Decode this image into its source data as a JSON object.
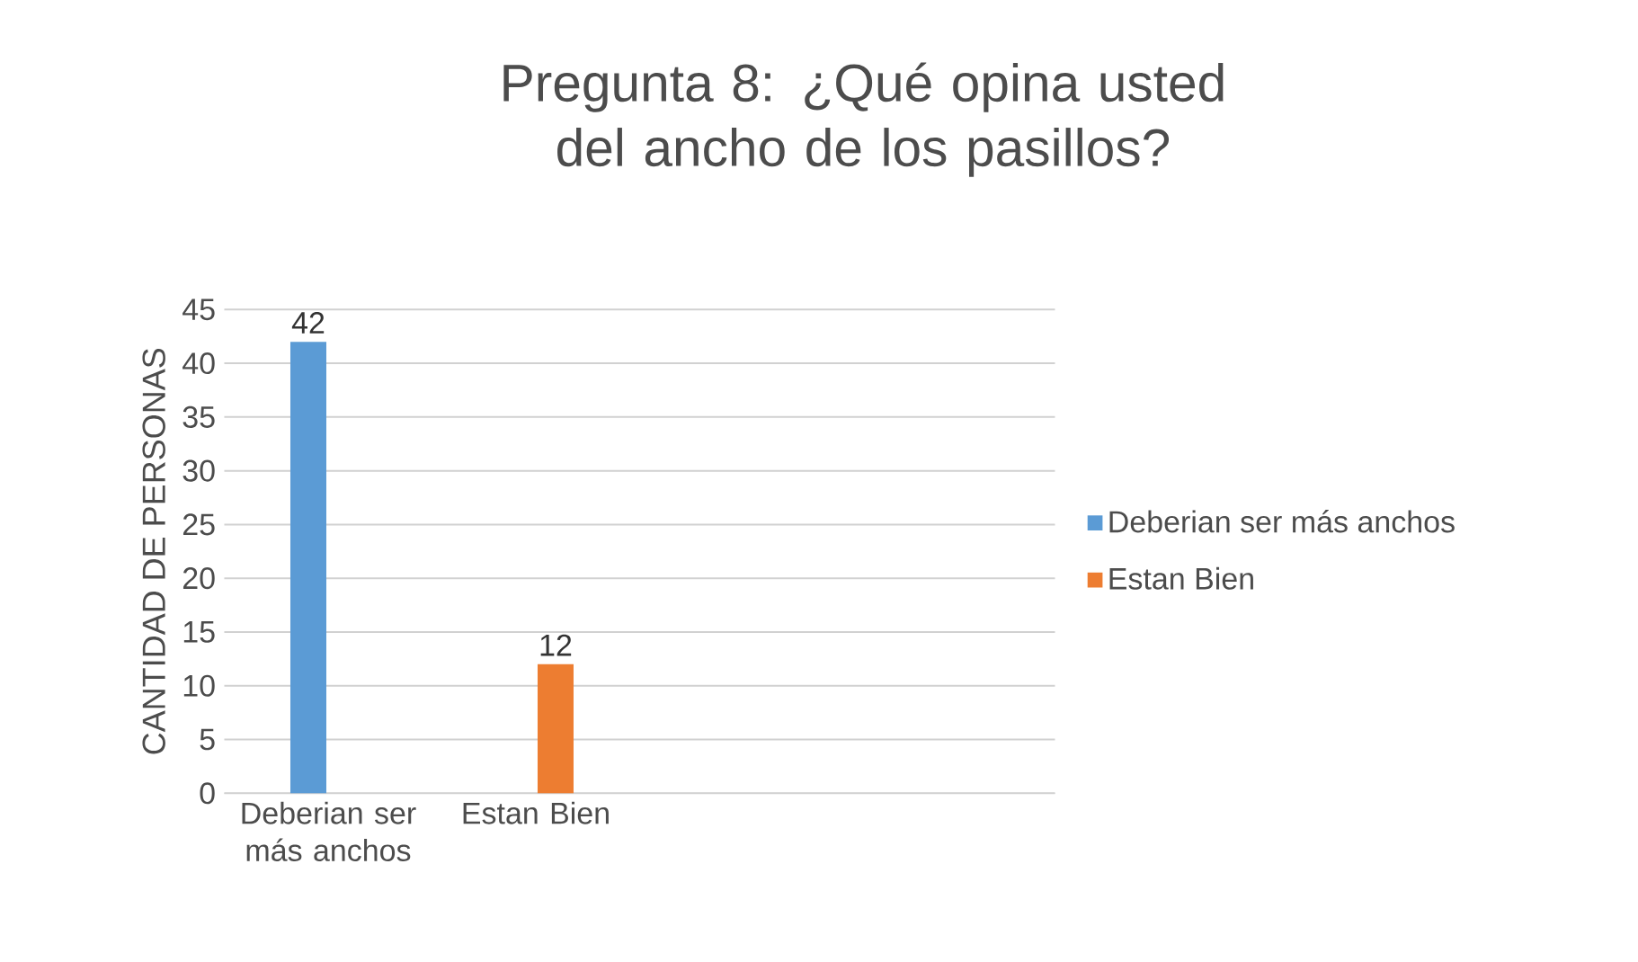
{
  "chart_data": {
    "type": "bar",
    "title": "Pregunta 8: ¿Qué opina usted del ancho de los pasillos?",
    "ylabel": "CANTIDAD DE PERSONAS",
    "categories": [
      "Deberian ser más anchos",
      "Estan Bien",
      null,
      null
    ],
    "series": [
      {
        "name": "Deberian ser más anchos",
        "color": "#5b9bd5",
        "values": [
          42,
          null,
          null,
          null
        ]
      },
      {
        "name": "Estan Bien",
        "color": "#ed7d31",
        "values": [
          null,
          12,
          null,
          null
        ]
      }
    ],
    "ylim": [
      0,
      45
    ],
    "yticks": [
      0,
      5,
      10,
      15,
      20,
      25,
      30,
      35,
      40,
      45
    ],
    "grid": "y",
    "legend": "right",
    "data_labels": true
  }
}
